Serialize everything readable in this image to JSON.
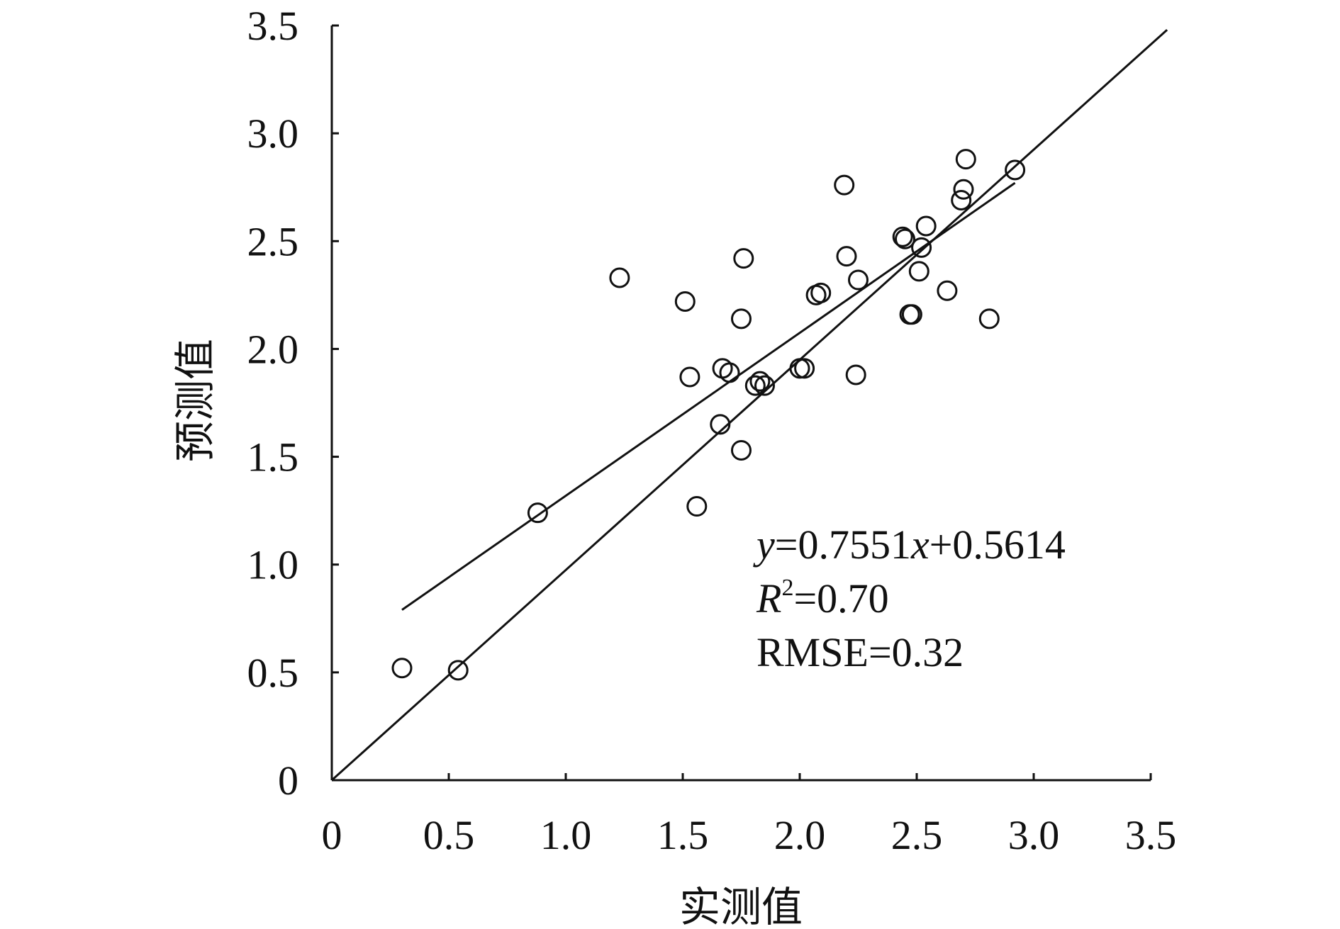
{
  "chart_data": {
    "type": "scatter",
    "title": "",
    "xlabel": "实测值",
    "ylabel": "预测值",
    "xlim": [
      0,
      3.5
    ],
    "ylim": [
      0,
      3.5
    ],
    "xticks": [
      0,
      0.5,
      1.0,
      1.5,
      2.0,
      2.5,
      3.0,
      3.5
    ],
    "yticks": [
      0,
      0.5,
      1.0,
      1.5,
      2.0,
      2.5,
      3.0,
      3.5
    ],
    "xtick_labels": [
      "0",
      "0.5",
      "1.0",
      "1.5",
      "2.0",
      "2.5",
      "3.0",
      "3.5"
    ],
    "ytick_labels": [
      "0",
      "0.5",
      "1.0",
      "1.5",
      "2.0",
      "2.5",
      "3.0",
      "3.5"
    ],
    "grid": false,
    "legend": false,
    "marker": "open-circle",
    "points": [
      {
        "x": 0.3,
        "y": 0.52
      },
      {
        "x": 0.54,
        "y": 0.51
      },
      {
        "x": 0.88,
        "y": 1.24
      },
      {
        "x": 1.23,
        "y": 2.33
      },
      {
        "x": 1.51,
        "y": 2.22
      },
      {
        "x": 1.53,
        "y": 1.87
      },
      {
        "x": 1.56,
        "y": 1.27
      },
      {
        "x": 1.66,
        "y": 1.65
      },
      {
        "x": 1.67,
        "y": 1.91
      },
      {
        "x": 1.7,
        "y": 1.89
      },
      {
        "x": 1.75,
        "y": 1.53
      },
      {
        "x": 1.75,
        "y": 2.14
      },
      {
        "x": 1.76,
        "y": 2.42
      },
      {
        "x": 1.81,
        "y": 1.83
      },
      {
        "x": 1.83,
        "y": 1.85
      },
      {
        "x": 1.85,
        "y": 1.83
      },
      {
        "x": 2.0,
        "y": 1.91
      },
      {
        "x": 2.02,
        "y": 1.91
      },
      {
        "x": 2.07,
        "y": 2.25
      },
      {
        "x": 2.09,
        "y": 2.26
      },
      {
        "x": 2.19,
        "y": 2.76
      },
      {
        "x": 2.2,
        "y": 2.43
      },
      {
        "x": 2.24,
        "y": 1.88
      },
      {
        "x": 2.25,
        "y": 2.32
      },
      {
        "x": 2.44,
        "y": 2.52
      },
      {
        "x": 2.45,
        "y": 2.51
      },
      {
        "x": 2.47,
        "y": 2.16
      },
      {
        "x": 2.48,
        "y": 2.16
      },
      {
        "x": 2.51,
        "y": 2.36
      },
      {
        "x": 2.52,
        "y": 2.47
      },
      {
        "x": 2.54,
        "y": 2.57
      },
      {
        "x": 2.63,
        "y": 2.27
      },
      {
        "x": 2.69,
        "y": 2.69
      },
      {
        "x": 2.7,
        "y": 2.74
      },
      {
        "x": 2.71,
        "y": 2.88
      },
      {
        "x": 2.81,
        "y": 2.14
      },
      {
        "x": 2.92,
        "y": 2.83
      }
    ],
    "lines": [
      {
        "x": [
          0,
          3.57
        ],
        "y": [
          0,
          3.48
        ]
      },
      {
        "x": [
          0.3,
          2.92
        ],
        "y": [
          0.79,
          2.77
        ]
      }
    ],
    "annotations": {
      "eq_y": "y",
      "eq_mid": "=0.7551",
      "eq_x": "x",
      "eq_tail": "+0.5614",
      "r_italic": "R",
      "r_sup": "2",
      "r_value": "=0.70",
      "rmse": "RMSE=0.32"
    }
  }
}
